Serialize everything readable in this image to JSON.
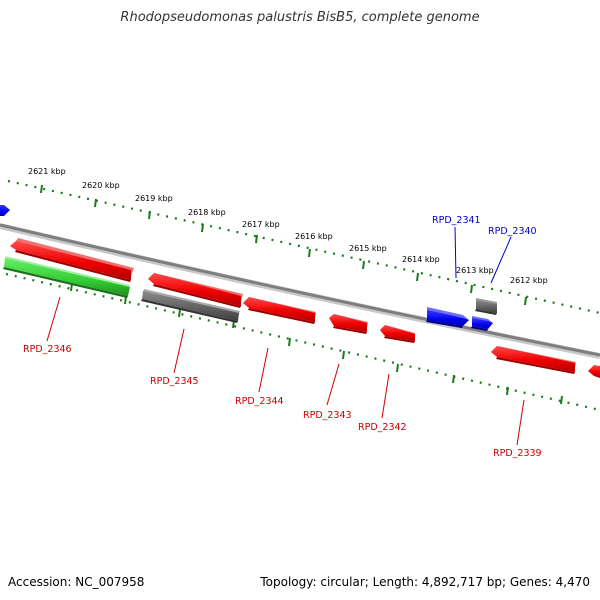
{
  "title": "Rhodopseudomonas palustris BisB5, complete genome",
  "footer": {
    "accession": "Accession: NC_007958",
    "summary": "Topology: circular; Length: 4,892,717 bp; Genes: 4,470"
  },
  "colors": {
    "forward": "#ff0000",
    "reverse_blue": "#0000ff",
    "other_gray": "#666666",
    "rna_green": "#33cc33",
    "backbone": "#888888",
    "ruler": "#1a7a1a"
  },
  "ruler_labels": [
    "2621 kbp",
    "2620 kbp",
    "2619 kbp",
    "2618 kbp",
    "2617 kbp",
    "2616 kbp",
    "2615 kbp",
    "2614 kbp",
    "2613 kbp",
    "2612 kbp"
  ],
  "genes": [
    {
      "label": "RPD_2346",
      "color": "red"
    },
    {
      "label": "RPD_2345",
      "color": "red"
    },
    {
      "label": "RPD_2344",
      "color": "red"
    },
    {
      "label": "RPD_2343",
      "color": "red"
    },
    {
      "label": "RPD_2342",
      "color": "red"
    },
    {
      "label": "RPD_2341",
      "color": "blue"
    },
    {
      "label": "RPD_2340",
      "color": "blue"
    },
    {
      "label": "RPD_2339",
      "color": "red"
    }
  ]
}
